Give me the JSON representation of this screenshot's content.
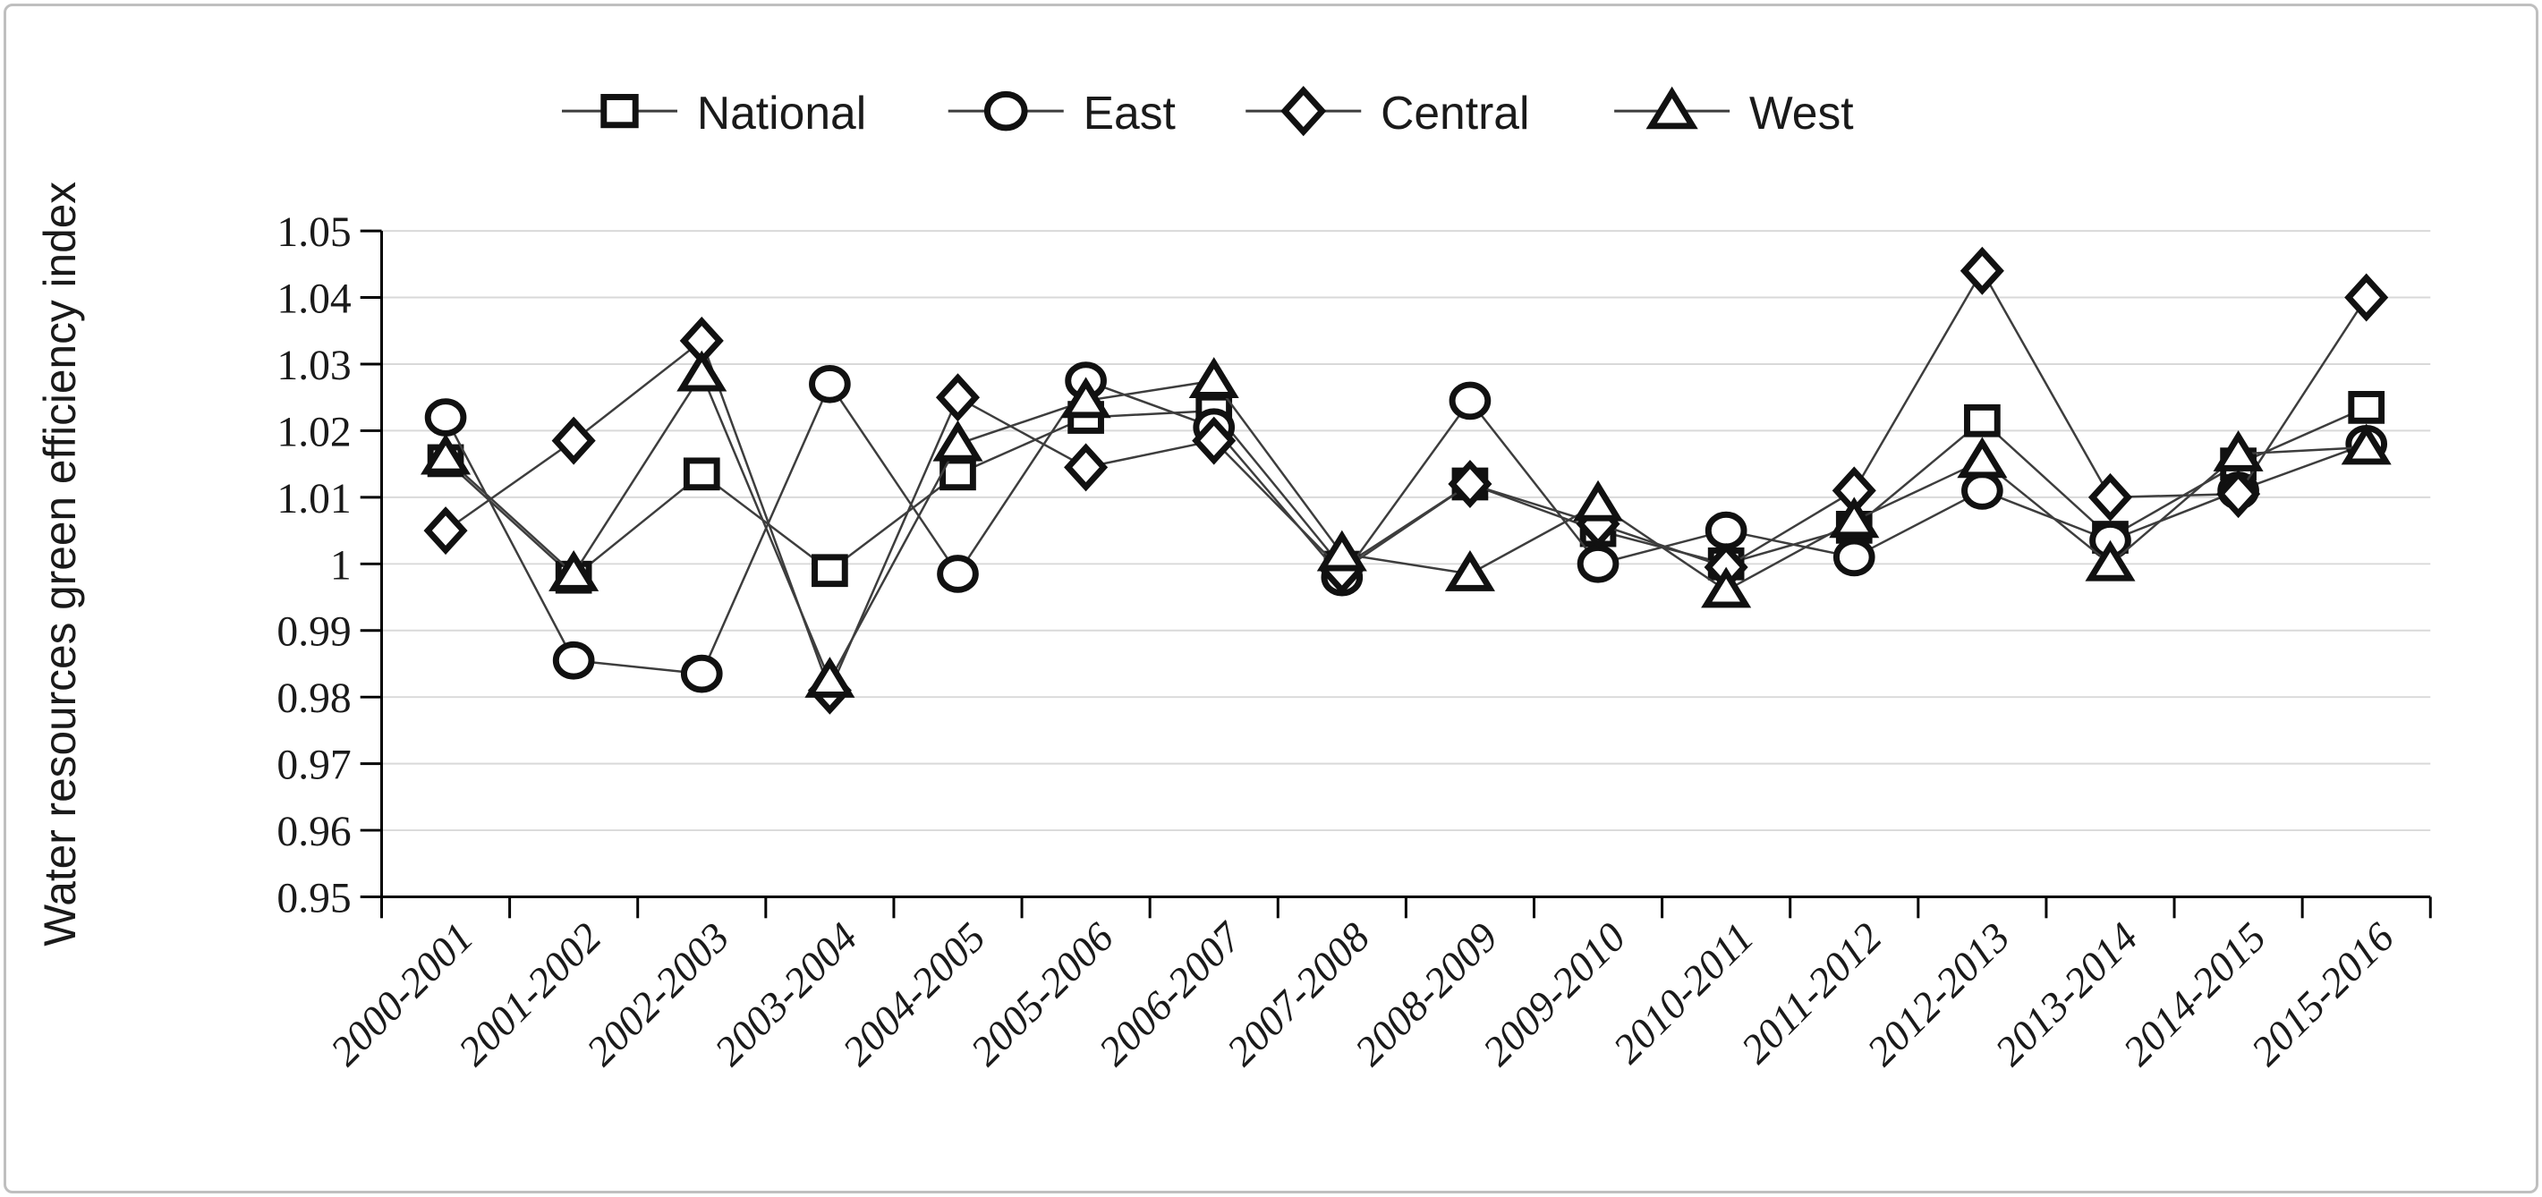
{
  "figure": {
    "background": "#ffffff",
    "border_color": "#bfbfbf"
  },
  "chart_data": {
    "type": "line",
    "title": "",
    "xlabel": "",
    "ylabel": "Water resources green efficiency index",
    "ylim": [
      0.95,
      1.05
    ],
    "ytick_step": 0.01,
    "ytick_labels": [
      "1.05",
      "1.04",
      "1.03",
      "1.02",
      "1.01",
      "1",
      "0.99",
      "0.98",
      "0.97",
      "0.96",
      "0.95"
    ],
    "grid": "horizontal",
    "grid_color": "#d9d9d9",
    "axis_color": "#000000",
    "line_color": "#3d3d3d",
    "marker_stroke": "#111111",
    "marker_fill": "#ffffff",
    "legend_position": "top",
    "categories": [
      "2000-2001",
      "2001-2002",
      "2002-2003",
      "2003-2004",
      "2004-2005",
      "2005-2006",
      "2006-2007",
      "2007-2008",
      "2008-2009",
      "2009-2010",
      "2010-2011",
      "2011-2012",
      "2012-2013",
      "2013-2014",
      "2014-2015",
      "2015-2016"
    ],
    "series": [
      {
        "name": "National",
        "marker": "square",
        "values": [
          1.0155,
          0.998,
          1.0135,
          0.999,
          1.0135,
          1.022,
          1.023,
          0.9995,
          1.012,
          1.005,
          1.0,
          1.0055,
          1.0215,
          1.004,
          1.015,
          1.0235
        ]
      },
      {
        "name": "East",
        "marker": "circle",
        "values": [
          1.022,
          0.9855,
          0.9835,
          1.027,
          0.9985,
          1.0275,
          1.0205,
          0.998,
          1.0245,
          1.0,
          1.005,
          1.001,
          1.011,
          1.0035,
          1.011,
          1.018
        ]
      },
      {
        "name": "Central",
        "marker": "diamond",
        "values": [
          1.005,
          1.0185,
          1.0335,
          0.981,
          1.025,
          1.0145,
          1.0185,
          0.999,
          1.012,
          1.006,
          0.9995,
          1.011,
          1.044,
          1.01,
          1.0105,
          1.04
        ]
      },
      {
        "name": "West",
        "marker": "triangle",
        "values": [
          1.016,
          0.9985,
          1.0285,
          0.9825,
          1.018,
          1.0245,
          1.0275,
          1.0015,
          0.9985,
          1.009,
          0.996,
          1.0065,
          1.0155,
          1.0,
          1.0165,
          1.0175
        ]
      }
    ]
  }
}
